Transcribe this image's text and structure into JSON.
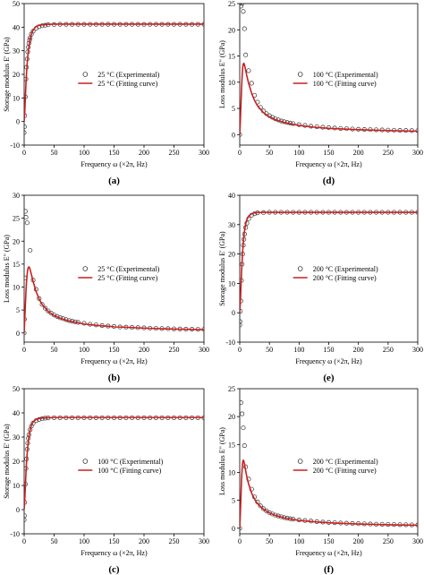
{
  "colors": {
    "fit": "#cc1f1f",
    "exp": "#333333",
    "axis": "#000000"
  },
  "chart_data": [
    {
      "panel": "(a)",
      "type": "scatter",
      "xlabel": "Frequency ω (×2π, Hz)",
      "ylabel": "Storage modulus E' (GPa)",
      "xlim": [
        0,
        300
      ],
      "ylim": [
        -10,
        50
      ],
      "xticks": [
        "0",
        "50",
        "100",
        "150",
        "200",
        "250",
        "300"
      ],
      "yticks": [
        "-10",
        "0",
        "10",
        "20",
        "30",
        "40",
        "50"
      ],
      "legend": [
        "25 °C (Experimental)",
        "25 °C (Fitting curve)"
      ],
      "legend_position": "center-right",
      "series": [
        {
          "name": "25 °C (Experimental)",
          "kind": "markers",
          "x": [
            0,
            0.5,
            1,
            2,
            3,
            4,
            5,
            6,
            7,
            8,
            9,
            10,
            12,
            15,
            20,
            25,
            30,
            35,
            40,
            50,
            60,
            70,
            80,
            90,
            100,
            110,
            120,
            130,
            140,
            150,
            160,
            170,
            180,
            190,
            200,
            210,
            220,
            230,
            240,
            250,
            260,
            270,
            280,
            290,
            300
          ],
          "y": [
            -4.7,
            -2.2,
            2.5,
            10.5,
            18,
            23,
            26.5,
            29.5,
            31.5,
            33.2,
            34.5,
            35.5,
            37,
            38.3,
            39.5,
            40.2,
            40.6,
            40.8,
            41.0,
            41.1,
            41.2,
            41.2,
            41.2,
            41.2,
            41.2,
            41.2,
            41.2,
            41.2,
            41.2,
            41.2,
            41.2,
            41.2,
            41.2,
            41.2,
            41.2,
            41.2,
            41.2,
            41.2,
            41.2,
            41.2,
            41.2,
            41.2,
            41.2,
            41.2,
            41.2
          ]
        },
        {
          "name": "25 °C (Fitting curve)",
          "kind": "line",
          "x": [
            0,
            1,
            2,
            3,
            4,
            5,
            6,
            7,
            8,
            10,
            12,
            15,
            20,
            25,
            30,
            40,
            50,
            75,
            100,
            150,
            200,
            250,
            300
          ],
          "y": [
            0,
            4,
            10,
            16,
            20.5,
            24.5,
            27.5,
            30,
            32,
            35,
            37,
            38.8,
            40.3,
            40.8,
            41.0,
            41.2,
            41.3,
            41.3,
            41.3,
            41.3,
            41.3,
            41.3,
            41.3
          ]
        }
      ]
    },
    {
      "panel": "(b)",
      "type": "scatter",
      "xlabel": "Frequency ω (×2π, Hz)",
      "ylabel": "Loss modulus E\" (GPa)",
      "xlim": [
        0,
        300
      ],
      "ylim": [
        -2,
        30
      ],
      "xticks": [
        "0",
        "50",
        "100",
        "150",
        "200",
        "250",
        "300"
      ],
      "yticks": [
        "0",
        "5",
        "10",
        "15",
        "20",
        "25",
        "30"
      ],
      "legend": [
        "25 °C (Experimental)",
        "25 °C (Fitting curve)"
      ],
      "legend_position": "center-right",
      "series": [
        {
          "name": "25 °C (Experimental)",
          "kind": "markers",
          "x": [
            0,
            0.5,
            1,
            2,
            3,
            5,
            10,
            15,
            20,
            25,
            30,
            35,
            40,
            45,
            50,
            55,
            60,
            65,
            70,
            75,
            80,
            85,
            90,
            100,
            110,
            120,
            130,
            140,
            150,
            160,
            170,
            180,
            190,
            200,
            210,
            220,
            230,
            240,
            250,
            260,
            270,
            280,
            290,
            300
          ],
          "y": [
            0,
            3,
            12,
            26.5,
            25.2,
            24,
            18,
            11.5,
            9.5,
            7.5,
            6.2,
            5.4,
            4.8,
            4.3,
            3.9,
            3.6,
            3.3,
            3.1,
            2.9,
            2.7,
            2.55,
            2.4,
            2.3,
            2.1,
            1.9,
            1.75,
            1.6,
            1.5,
            1.4,
            1.3,
            1.25,
            1.2,
            1.15,
            1.1,
            1.05,
            1.0,
            0.97,
            0.93,
            0.9,
            0.87,
            0.84,
            0.82,
            0.8,
            0.78
          ]
        },
        {
          "name": "25 °C (Fitting curve)",
          "kind": "line",
          "x": [
            0,
            1,
            2,
            3,
            4,
            5,
            6,
            7,
            8,
            9,
            10,
            12,
            15,
            20,
            25,
            30,
            40,
            50,
            60,
            75,
            100,
            125,
            150,
            200,
            250,
            300
          ],
          "y": [
            0,
            3,
            6,
            9,
            11.2,
            12.8,
            13.8,
            14.3,
            14.4,
            14.2,
            13.8,
            12.8,
            11.2,
            9.0,
            7.4,
            6.2,
            4.7,
            3.8,
            3.2,
            2.6,
            1.95,
            1.6,
            1.35,
            1.05,
            0.85,
            0.72
          ]
        }
      ]
    },
    {
      "panel": "(c)",
      "type": "scatter",
      "xlabel": "Frequency ω (×2π, Hz)",
      "ylabel": "Storage modulus E' (GPa)",
      "xlim": [
        0,
        300
      ],
      "ylim": [
        -10,
        50
      ],
      "xticks": [
        "0",
        "50",
        "100",
        "150",
        "200",
        "250",
        "300"
      ],
      "yticks": [
        "-10",
        "0",
        "10",
        "20",
        "30",
        "40",
        "50"
      ],
      "legend": [
        "100 °C (Experimental)",
        "100 °C (Fitting curve)"
      ],
      "legend_position": "center-right",
      "series": [
        {
          "name": "100 °C (Experimental)",
          "kind": "markers",
          "x": [
            0,
            0.5,
            1,
            2,
            3,
            4,
            5,
            6,
            7,
            8,
            10,
            12,
            15,
            20,
            25,
            30,
            35,
            40,
            50,
            60,
            70,
            80,
            90,
            100,
            110,
            120,
            130,
            140,
            150,
            160,
            170,
            180,
            190,
            200,
            210,
            220,
            230,
            240,
            250,
            260,
            270,
            280,
            290,
            300
          ],
          "y": [
            -4.2,
            -2.5,
            3,
            10.5,
            17,
            21,
            25,
            27.5,
            29.5,
            31,
            33,
            34.5,
            35.8,
            36.8,
            37.3,
            37.6,
            37.8,
            37.9,
            38.0,
            38.0,
            38.0,
            38.0,
            38.0,
            38.0,
            38.0,
            38.0,
            38.0,
            38.0,
            38.0,
            38.0,
            38.0,
            38.0,
            38.0,
            38.0,
            38.0,
            38.0,
            38.0,
            38.0,
            38.0,
            38.0,
            38.0,
            38.0,
            38.0,
            38.0
          ]
        },
        {
          "name": "100 °C (Fitting curve)",
          "kind": "line",
          "x": [
            0,
            1,
            2,
            3,
            4,
            5,
            6,
            7,
            8,
            10,
            12,
            15,
            20,
            25,
            30,
            40,
            50,
            75,
            100,
            150,
            200,
            250,
            300
          ],
          "y": [
            0,
            4,
            9.5,
            15,
            19.5,
            23,
            26,
            28.5,
            30.5,
            33,
            34.8,
            36.3,
            37.3,
            37.7,
            37.9,
            38.0,
            38.1,
            38.1,
            38.1,
            38.1,
            38.1,
            38.1,
            38.1
          ]
        }
      ]
    },
    {
      "panel": "(d)",
      "type": "scatter",
      "xlabel": "Frequency ω (×2π, Hz)",
      "ylabel": "Loss modulus E\" (GPa)",
      "xlim": [
        0,
        300
      ],
      "ylim": [
        -2,
        25
      ],
      "xticks": [
        "0",
        "50",
        "100",
        "150",
        "200",
        "250",
        "300"
      ],
      "yticks": [
        "0",
        "5",
        "10",
        "15",
        "20",
        "25"
      ],
      "legend": [
        "100 °C (Experimental)",
        "100 °C (Fitting curve)"
      ],
      "legend_position": "center-right",
      "series": [
        {
          "name": "100 °C (Experimental)",
          "kind": "markers",
          "x": [
            0,
            2,
            4,
            6,
            8,
            10,
            15,
            20,
            25,
            30,
            35,
            40,
            45,
            50,
            55,
            60,
            65,
            70,
            75,
            80,
            85,
            90,
            100,
            110,
            120,
            130,
            140,
            150,
            160,
            170,
            180,
            190,
            200,
            210,
            220,
            230,
            240,
            250,
            260,
            270,
            280,
            290,
            300
          ],
          "y": [
            0,
            24.5,
            25,
            23.5,
            20.2,
            15.2,
            12.2,
            9.8,
            7.5,
            6.2,
            5.2,
            4.5,
            4.0,
            3.6,
            3.3,
            3.0,
            2.8,
            2.6,
            2.45,
            2.3,
            2.2,
            2.1,
            1.9,
            1.75,
            1.6,
            1.5,
            1.4,
            1.32,
            1.25,
            1.18,
            1.12,
            1.07,
            1.02,
            0.98,
            0.95,
            0.92,
            0.89,
            0.86,
            0.84,
            0.81,
            0.79,
            0.77,
            0.75
          ]
        },
        {
          "name": "100 °C (Fitting curve)",
          "kind": "line",
          "x": [
            0,
            1,
            2,
            3,
            4,
            5,
            6,
            7,
            8,
            9,
            10,
            12,
            15,
            20,
            25,
            30,
            40,
            50,
            60,
            75,
            100,
            125,
            150,
            200,
            250,
            300
          ],
          "y": [
            0,
            2.5,
            5.5,
            8.5,
            11,
            12.8,
            13.5,
            13.6,
            13.3,
            12.8,
            12.3,
            11.2,
            9.8,
            7.9,
            6.5,
            5.5,
            4.2,
            3.4,
            2.85,
            2.3,
            1.75,
            1.42,
            1.2,
            0.93,
            0.76,
            0.65
          ]
        }
      ]
    },
    {
      "panel": "(e)",
      "type": "scatter",
      "xlabel": "Frequency ω (×2π, Hz)",
      "ylabel": "Storage modulus E' (GPa)",
      "xlim": [
        0,
        300
      ],
      "ylim": [
        -10,
        40
      ],
      "xticks": [
        "0",
        "50",
        "100",
        "150",
        "200",
        "250",
        "300"
      ],
      "yticks": [
        "-10",
        "0",
        "10",
        "20",
        "30",
        "40"
      ],
      "legend": [
        "200 °C (Experimental)",
        "200 °C (Fitting curve)"
      ],
      "legend_position": "center-right",
      "series": [
        {
          "name": "200 °C (Experimental)",
          "kind": "markers",
          "x": [
            0,
            0.5,
            1,
            2,
            3,
            4,
            5,
            6,
            7,
            8,
            10,
            12,
            15,
            20,
            25,
            30,
            40,
            50,
            60,
            70,
            80,
            90,
            100,
            110,
            120,
            130,
            140,
            150,
            160,
            170,
            180,
            190,
            200,
            210,
            220,
            230,
            240,
            250,
            260,
            270,
            280,
            290,
            300
          ],
          "y": [
            -4.2,
            -3,
            0.5,
            4,
            11,
            16.5,
            20,
            23,
            25,
            26.8,
            29,
            30.5,
            32,
            33.2,
            33.7,
            34.0,
            34.1,
            34.2,
            34.2,
            34.2,
            34.2,
            34.2,
            34.2,
            34.2,
            34.2,
            34.2,
            34.2,
            34.2,
            34.2,
            34.2,
            34.2,
            34.2,
            34.2,
            34.2,
            34.2,
            34.2,
            34.2,
            34.2,
            34.2,
            34.2,
            34.2,
            34.2,
            34.2
          ]
        },
        {
          "name": "200 °C (Fitting curve)",
          "kind": "line",
          "x": [
            0,
            1,
            2,
            3,
            4,
            5,
            6,
            7,
            8,
            10,
            12,
            15,
            20,
            25,
            30,
            40,
            50,
            75,
            100,
            150,
            200,
            250,
            300
          ],
          "y": [
            0,
            3.5,
            8.5,
            13.5,
            17.5,
            21,
            23.8,
            26,
            27.8,
            30.2,
            31.7,
            32.9,
            33.7,
            34.0,
            34.1,
            34.2,
            34.2,
            34.2,
            34.2,
            34.2,
            34.2,
            34.2,
            34.2
          ]
        }
      ]
    },
    {
      "panel": "(f)",
      "type": "scatter",
      "xlabel": "Frequency ω (×2π, Hz)",
      "ylabel": "Loss modulus E\" (GPa)",
      "xlim": [
        0,
        300
      ],
      "ylim": [
        -1,
        25
      ],
      "xticks": [
        "0",
        "50",
        "100",
        "150",
        "200",
        "250",
        "300"
      ],
      "yticks": [
        "0",
        "5",
        "10",
        "15",
        "20",
        "25"
      ],
      "legend": [
        "200 °C (Experimental)",
        "200 °C (Fitting curve)"
      ],
      "legend_position": "center-right",
      "series": [
        {
          "name": "200 °C (Experimental)",
          "kind": "markers",
          "x": [
            0,
            2,
            4,
            6,
            8,
            10,
            15,
            20,
            25,
            30,
            35,
            40,
            45,
            50,
            55,
            60,
            65,
            70,
            75,
            80,
            85,
            90,
            100,
            110,
            120,
            130,
            140,
            150,
            160,
            170,
            180,
            190,
            200,
            210,
            220,
            230,
            240,
            250,
            260,
            270,
            280,
            290,
            300
          ],
          "y": [
            0,
            22.5,
            20.5,
            18,
            14.8,
            11,
            8.8,
            7.0,
            5.6,
            4.7,
            4.0,
            3.5,
            3.1,
            2.8,
            2.55,
            2.35,
            2.2,
            2.05,
            1.9,
            1.8,
            1.7,
            1.62,
            1.48,
            1.37,
            1.27,
            1.18,
            1.1,
            1.04,
            0.98,
            0.93,
            0.89,
            0.85,
            0.81,
            0.78,
            0.75,
            0.72,
            0.7,
            0.68,
            0.66,
            0.64,
            0.62,
            0.6,
            0.59
          ]
        },
        {
          "name": "200 °C (Fitting curve)",
          "kind": "line",
          "x": [
            0,
            1,
            2,
            3,
            4,
            5,
            6,
            7,
            8,
            9,
            10,
            12,
            15,
            20,
            25,
            30,
            40,
            50,
            60,
            75,
            100,
            125,
            150,
            200,
            250,
            300
          ],
          "y": [
            0,
            2.5,
            5.5,
            8.5,
            10.5,
            11.8,
            12.2,
            12.0,
            11.5,
            10.9,
            10.3,
            9.2,
            7.9,
            6.3,
            5.2,
            4.4,
            3.4,
            2.75,
            2.3,
            1.85,
            1.4,
            1.15,
            0.97,
            0.75,
            0.62,
            0.53
          ]
        }
      ]
    }
  ]
}
